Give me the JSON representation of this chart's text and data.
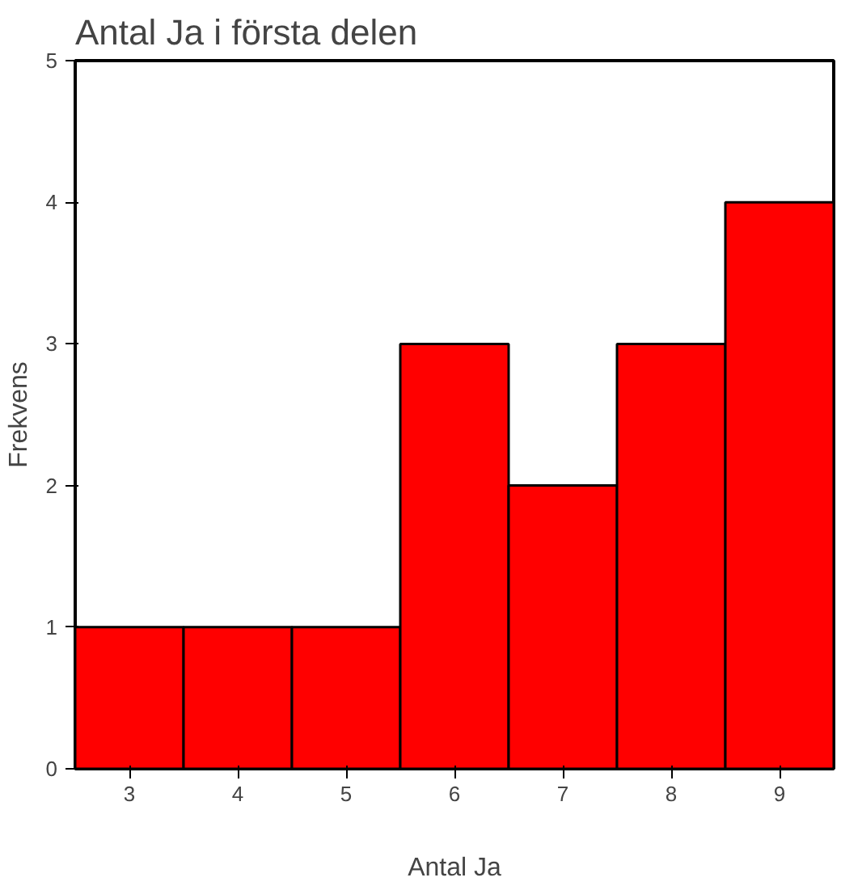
{
  "chart_data": {
    "type": "bar",
    "title": "Antal Ja i första delen",
    "xlabel": "Antal Ja",
    "ylabel": "Frekvens",
    "categories": [
      "3",
      "4",
      "5",
      "6",
      "7",
      "8",
      "9"
    ],
    "values": [
      1,
      1,
      1,
      3,
      2,
      3,
      4
    ],
    "color": "#ff0000",
    "ylim": [
      0,
      5
    ],
    "yticks": [
      0,
      1,
      2,
      3,
      4,
      5
    ],
    "grid": false
  }
}
